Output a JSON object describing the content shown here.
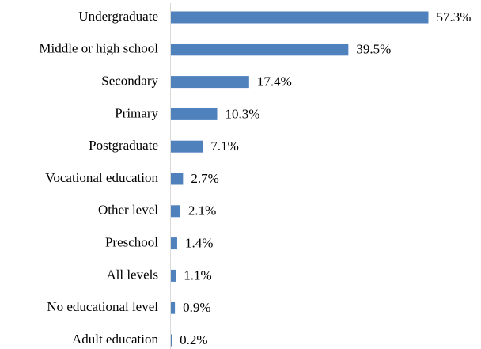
{
  "chart_data": {
    "type": "bar",
    "orientation": "horizontal",
    "categories": [
      "Undergraduate",
      "Middle or high school",
      "Secondary",
      "Primary",
      "Postgraduate",
      "Vocational education",
      "Other level",
      "Preschool",
      "All levels",
      "No educational level",
      "Adult education"
    ],
    "values": [
      57.3,
      39.5,
      17.4,
      10.3,
      7.1,
      2.7,
      2.1,
      1.4,
      1.1,
      0.9,
      0.2
    ],
    "value_labels": [
      "57.3%",
      "39.5%",
      "17.4%",
      "10.3%",
      "7.1%",
      "2.7%",
      "2.1%",
      "1.4%",
      "1.1%",
      "0.9%",
      "0.2%"
    ],
    "color": "#4f81bd"
  }
}
